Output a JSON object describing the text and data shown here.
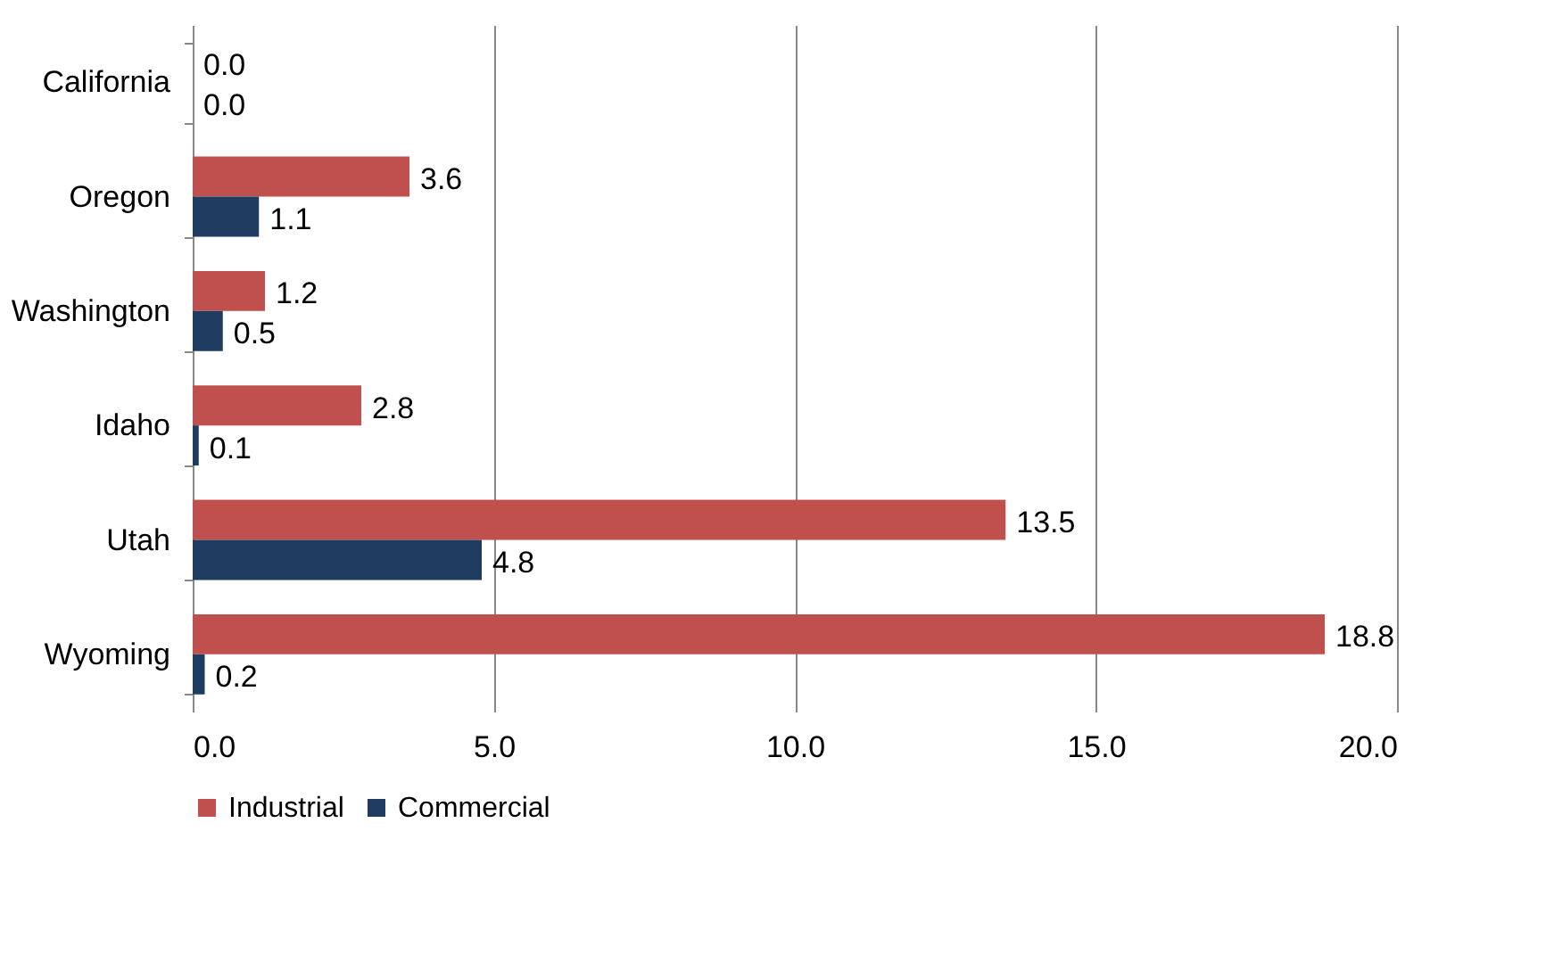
{
  "chart_data": {
    "type": "bar",
    "orientation": "horizontal",
    "categories": [
      "California",
      "Oregon",
      "Washington",
      "Idaho",
      "Utah",
      "Wyoming"
    ],
    "series": [
      {
        "name": "Industrial",
        "color": "#c0504d",
        "values": [
          0.0,
          3.6,
          1.2,
          2.8,
          13.5,
          18.8
        ],
        "value_labels": [
          "0.0",
          "3.6",
          "1.2",
          "2.8",
          "13.5",
          "18.8"
        ]
      },
      {
        "name": "Commercial",
        "color": "#1f3b5f",
        "values": [
          0.0,
          1.1,
          0.5,
          0.1,
          4.8,
          0.2
        ],
        "value_labels": [
          "0.0",
          "1.1",
          "0.5",
          "0.1",
          "4.8",
          "0.2"
        ]
      }
    ],
    "xlim": [
      0,
      20
    ],
    "xticks": [
      {
        "value": 0,
        "label": "0.0"
      },
      {
        "value": 5,
        "label": "5.0"
      },
      {
        "value": 10,
        "label": "10.0"
      },
      {
        "value": 15,
        "label": "15.0"
      },
      {
        "value": 20,
        "label": "20.0"
      }
    ],
    "grid": "x",
    "legend": "bottom"
  }
}
